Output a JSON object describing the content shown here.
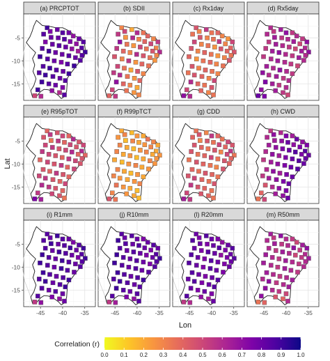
{
  "chart_data": {
    "type": "heatmap",
    "subtype": "faceted spatial point map (colored squares over a region outline)",
    "xlabel": "Lon",
    "ylabel": "Lat",
    "x_ticks": [
      -45,
      -40,
      -35
    ],
    "y_ticks": [
      -5,
      -10,
      -15
    ],
    "xlim": [
      -48.8,
      -32.6
    ],
    "ylim": [
      -18.6,
      0.2
    ],
    "grid": true,
    "colorbar": {
      "title": "Correlation (r)",
      "range": [
        0.0,
        1.0
      ],
      "ticks": [
        "0.0",
        "0.1",
        "0.2",
        "0.3",
        "0.4",
        "0.5",
        "0.6",
        "0.7",
        "0.8",
        "0.9",
        "1.0"
      ],
      "colors": [
        "#f0f921",
        "#fdc527",
        "#f89540",
        "#e66c5c",
        "#cc4778",
        "#aa2395",
        "#7e03a8",
        "#4c02a1",
        "#0d0887"
      ],
      "placement": "bottom"
    },
    "stations": [
      {
        "lon": -43.5,
        "lat": -2.8
      },
      {
        "lon": -42.8,
        "lat": -3.6
      },
      {
        "lon": -41.2,
        "lat": -3.2
      },
      {
        "lon": -40.0,
        "lat": -3.9
      },
      {
        "lon": -38.6,
        "lat": -3.9
      },
      {
        "lon": -37.6,
        "lat": -4.6
      },
      {
        "lon": -36.3,
        "lat": -5.2
      },
      {
        "lon": -35.3,
        "lat": -5.9
      },
      {
        "lon": -44.3,
        "lat": -4.2
      },
      {
        "lon": -42.6,
        "lat": -4.9
      },
      {
        "lon": -41.0,
        "lat": -5.0
      },
      {
        "lon": -39.6,
        "lat": -5.3
      },
      {
        "lon": -38.3,
        "lat": -5.8
      },
      {
        "lon": -36.9,
        "lat": -6.3
      },
      {
        "lon": -35.7,
        "lat": -7.2
      },
      {
        "lon": -34.9,
        "lat": -8.1
      },
      {
        "lon": -43.9,
        "lat": -5.9
      },
      {
        "lon": -42.3,
        "lat": -6.4
      },
      {
        "lon": -40.8,
        "lat": -6.7
      },
      {
        "lon": -39.3,
        "lat": -7.0
      },
      {
        "lon": -37.9,
        "lat": -7.4
      },
      {
        "lon": -36.5,
        "lat": -7.9
      },
      {
        "lon": -35.6,
        "lat": -8.8
      },
      {
        "lon": -44.6,
        "lat": -7.3
      },
      {
        "lon": -43.1,
        "lat": -7.9
      },
      {
        "lon": -41.6,
        "lat": -8.2
      },
      {
        "lon": -40.1,
        "lat": -8.6
      },
      {
        "lon": -38.6,
        "lat": -8.9
      },
      {
        "lon": -37.1,
        "lat": -9.3
      },
      {
        "lon": -36.0,
        "lat": -9.9
      },
      {
        "lon": -45.1,
        "lat": -9.1
      },
      {
        "lon": -43.4,
        "lat": -9.6
      },
      {
        "lon": -41.9,
        "lat": -10.0
      },
      {
        "lon": -40.3,
        "lat": -10.3
      },
      {
        "lon": -38.9,
        "lat": -10.7
      },
      {
        "lon": -37.4,
        "lat": -11.1
      },
      {
        "lon": -44.4,
        "lat": -11.2
      },
      {
        "lon": -42.9,
        "lat": -11.6
      },
      {
        "lon": -41.4,
        "lat": -12.0
      },
      {
        "lon": -39.9,
        "lat": -12.3
      },
      {
        "lon": -38.6,
        "lat": -12.8
      },
      {
        "lon": -45.3,
        "lat": -12.6
      },
      {
        "lon": -43.9,
        "lat": -13.1
      },
      {
        "lon": -42.2,
        "lat": -13.4
      },
      {
        "lon": -40.6,
        "lat": -13.8
      },
      {
        "lon": -39.4,
        "lat": -14.3
      },
      {
        "lon": -44.7,
        "lat": -14.6
      },
      {
        "lon": -43.1,
        "lat": -15.0
      },
      {
        "lon": -41.6,
        "lat": -15.3
      },
      {
        "lon": -40.0,
        "lat": -15.8
      },
      {
        "lon": -42.4,
        "lat": -16.5
      },
      {
        "lon": -40.7,
        "lat": -16.9
      },
      {
        "lon": -39.6,
        "lat": -17.4
      },
      {
        "lon": -45.6,
        "lat": -16.3
      },
      {
        "lon": -46.3,
        "lat": -17.6
      },
      {
        "lon": -44.9,
        "lat": -17.7
      }
    ],
    "panels": [
      {
        "label": "(a) PRCPTOT",
        "r": [
          0.9,
          0.75,
          0.8,
          0.85,
          0.78,
          0.7,
          0.8,
          0.85,
          0.85,
          0.8,
          0.8,
          0.85,
          0.75,
          0.7,
          0.85,
          0.9,
          0.75,
          0.8,
          0.85,
          0.8,
          0.7,
          0.65,
          0.85,
          0.85,
          0.9,
          0.8,
          0.8,
          0.85,
          0.8,
          0.85,
          0.9,
          0.85,
          0.8,
          0.75,
          0.85,
          0.9,
          0.85,
          0.9,
          0.85,
          0.8,
          0.9,
          0.85,
          0.9,
          0.85,
          0.8,
          0.85,
          0.9,
          0.85,
          0.8,
          0.75,
          0.7,
          0.6,
          0.85,
          0.9,
          0.5,
          0.6
        ]
      },
      {
        "label": "(b) SDII",
        "r": [
          0.3,
          0.5,
          0.2,
          0.6,
          0.35,
          0.4,
          0.3,
          0.55,
          0.55,
          0.25,
          0.6,
          0.3,
          0.4,
          0.5,
          0.3,
          0.6,
          0.7,
          0.35,
          0.25,
          0.5,
          0.35,
          0.45,
          0.3,
          0.55,
          0.4,
          0.3,
          0.6,
          0.45,
          0.35,
          0.25,
          0.45,
          0.3,
          0.55,
          0.25,
          0.4,
          0.35,
          0.5,
          0.35,
          0.2,
          0.45,
          0.3,
          0.55,
          0.6,
          0.35,
          0.25,
          0.4,
          0.7,
          0.4,
          0.3,
          0.2,
          0.35,
          0.25,
          0.3,
          0.5,
          0.4,
          0.55
        ]
      },
      {
        "label": "(c) Rx1day",
        "r": [
          0.45,
          0.3,
          0.55,
          0.35,
          0.4,
          0.3,
          0.25,
          0.5,
          0.35,
          0.45,
          0.3,
          0.35,
          0.55,
          0.3,
          0.4,
          0.45,
          0.5,
          0.3,
          0.35,
          0.25,
          0.45,
          0.4,
          0.35,
          0.45,
          0.3,
          0.4,
          0.35,
          0.25,
          0.3,
          0.45,
          0.4,
          0.25,
          0.35,
          0.4,
          0.3,
          0.35,
          0.45,
          0.3,
          0.4,
          0.35,
          0.3,
          0.35,
          0.45,
          0.4,
          0.3,
          0.5,
          0.6,
          0.4,
          0.35,
          0.45,
          0.4,
          0.3,
          0.35,
          0.5,
          0.7,
          0.6
        ]
      },
      {
        "label": "(d) Rx5day",
        "r": [
          0.6,
          0.55,
          0.65,
          0.7,
          0.55,
          0.6,
          0.55,
          0.7,
          0.6,
          0.65,
          0.55,
          0.6,
          0.65,
          0.5,
          0.6,
          0.7,
          0.55,
          0.65,
          0.6,
          0.55,
          0.5,
          0.65,
          0.6,
          0.55,
          0.65,
          0.7,
          0.6,
          0.55,
          0.65,
          0.6,
          0.55,
          0.6,
          0.65,
          0.6,
          0.55,
          0.5,
          0.65,
          0.6,
          0.7,
          0.6,
          0.55,
          0.7,
          0.6,
          0.65,
          0.55,
          0.6,
          0.75,
          0.65,
          0.55,
          0.6,
          0.65,
          0.55,
          0.5,
          0.7,
          0.8,
          0.75
        ]
      },
      {
        "label": "(e) R95pTOT",
        "r": [
          0.4,
          0.55,
          0.45,
          0.5,
          0.4,
          0.6,
          0.45,
          0.5,
          0.45,
          0.35,
          0.55,
          0.4,
          0.5,
          0.45,
          0.6,
          0.4,
          0.5,
          0.55,
          0.45,
          0.5,
          0.6,
          0.4,
          0.45,
          0.55,
          0.5,
          0.45,
          0.4,
          0.55,
          0.5,
          0.45,
          0.4,
          0.5,
          0.45,
          0.55,
          0.4,
          0.5,
          0.45,
          0.4,
          0.55,
          0.45,
          0.4,
          0.5,
          0.55,
          0.45,
          0.4,
          0.5,
          0.6,
          0.55,
          0.45,
          0.4,
          0.5,
          0.45,
          0.35,
          0.55,
          0.75,
          0.65
        ]
      },
      {
        "label": "(f) R99pTCT",
        "r": [
          0.2,
          0.3,
          0.15,
          0.25,
          0.2,
          0.35,
          0.3,
          0.2,
          0.25,
          0.15,
          0.3,
          0.2,
          0.25,
          0.3,
          0.2,
          0.25,
          0.3,
          0.2,
          0.15,
          0.25,
          0.3,
          0.2,
          0.25,
          0.3,
          0.2,
          0.25,
          0.15,
          0.2,
          0.3,
          0.25,
          0.2,
          0.15,
          0.25,
          0.3,
          0.2,
          0.25,
          0.3,
          0.2,
          0.15,
          0.25,
          0.2,
          0.3,
          0.25,
          0.2,
          0.25,
          0.3,
          0.35,
          0.25,
          0.2,
          0.15,
          0.25,
          0.2,
          0.15,
          0.3,
          0.45,
          0.35
        ]
      },
      {
        "label": "(g) CDD",
        "r": [
          0.35,
          0.45,
          0.3,
          0.55,
          0.4,
          0.35,
          0.5,
          0.45,
          0.4,
          0.3,
          0.45,
          0.35,
          0.5,
          0.4,
          0.55,
          0.35,
          0.45,
          0.4,
          0.35,
          0.45,
          0.3,
          0.5,
          0.4,
          0.45,
          0.35,
          0.4,
          0.5,
          0.35,
          0.45,
          0.4,
          0.35,
          0.45,
          0.4,
          0.35,
          0.3,
          0.45,
          0.4,
          0.35,
          0.45,
          0.4,
          0.35,
          0.45,
          0.5,
          0.4,
          0.35,
          0.45,
          0.55,
          0.45,
          0.4,
          0.35,
          0.45,
          0.4,
          0.35,
          0.5,
          0.65,
          0.55
        ]
      },
      {
        "label": "(h) CWD",
        "r": [
          0.55,
          0.7,
          0.6,
          0.75,
          0.65,
          0.8,
          0.7,
          0.75,
          0.6,
          0.65,
          0.7,
          0.8,
          0.7,
          0.75,
          0.85,
          0.8,
          0.65,
          0.7,
          0.75,
          0.8,
          0.85,
          0.75,
          0.8,
          0.6,
          0.7,
          0.65,
          0.75,
          0.8,
          0.85,
          0.8,
          0.55,
          0.65,
          0.7,
          0.75,
          0.8,
          0.85,
          0.6,
          0.7,
          0.65,
          0.75,
          0.8,
          0.55,
          0.65,
          0.7,
          0.75,
          0.8,
          0.45,
          0.6,
          0.7,
          0.75,
          0.65,
          0.7,
          0.8,
          0.4,
          0.35,
          0.5
        ]
      },
      {
        "label": "(i) R1mm",
        "r": [
          0.85,
          0.8,
          0.9,
          0.85,
          0.8,
          0.75,
          0.85,
          0.9,
          0.85,
          0.9,
          0.8,
          0.85,
          0.9,
          0.8,
          0.85,
          0.9,
          0.85,
          0.8,
          0.9,
          0.85,
          0.8,
          0.75,
          0.85,
          0.9,
          0.85,
          0.8,
          0.9,
          0.85,
          0.8,
          0.85,
          0.9,
          0.85,
          0.8,
          0.9,
          0.85,
          0.8,
          0.9,
          0.85,
          0.8,
          0.85,
          0.9,
          0.85,
          0.9,
          0.8,
          0.85,
          0.9,
          0.85,
          0.8,
          0.85,
          0.8,
          0.75,
          0.7,
          0.8,
          0.85,
          0.55,
          0.7
        ]
      },
      {
        "label": "(j) R10mm",
        "r": [
          0.85,
          0.8,
          0.85,
          0.8,
          0.75,
          0.8,
          0.85,
          0.8,
          0.9,
          0.85,
          0.8,
          0.85,
          0.8,
          0.75,
          0.85,
          0.9,
          0.85,
          0.8,
          0.85,
          0.8,
          0.75,
          0.8,
          0.85,
          0.9,
          0.85,
          0.8,
          0.85,
          0.8,
          0.75,
          0.85,
          0.9,
          0.85,
          0.8,
          0.85,
          0.8,
          0.85,
          0.9,
          0.85,
          0.8,
          0.85,
          0.9,
          0.85,
          0.9,
          0.85,
          0.8,
          0.85,
          0.9,
          0.85,
          0.8,
          0.85,
          0.75,
          0.7,
          0.85,
          0.85,
          0.55,
          0.65
        ]
      },
      {
        "label": "(l) R20mm",
        "r": [
          0.8,
          0.75,
          0.85,
          0.8,
          0.75,
          0.7,
          0.8,
          0.85,
          0.85,
          0.8,
          0.75,
          0.8,
          0.85,
          0.75,
          0.8,
          0.85,
          0.8,
          0.75,
          0.85,
          0.8,
          0.7,
          0.75,
          0.8,
          0.85,
          0.8,
          0.75,
          0.85,
          0.8,
          0.75,
          0.8,
          0.85,
          0.8,
          0.75,
          0.85,
          0.8,
          0.75,
          0.85,
          0.8,
          0.75,
          0.8,
          0.85,
          0.8,
          0.85,
          0.75,
          0.8,
          0.85,
          0.8,
          0.75,
          0.8,
          0.75,
          0.7,
          0.65,
          0.8,
          0.85,
          0.55,
          0.6
        ]
      },
      {
        "label": "(m) R50mm",
        "r": [
          0.65,
          0.55,
          0.7,
          0.6,
          0.55,
          0.5,
          0.65,
          0.7,
          0.6,
          0.65,
          0.55,
          0.6,
          0.7,
          0.55,
          0.6,
          0.65,
          0.6,
          0.55,
          0.65,
          0.6,
          0.5,
          0.55,
          0.6,
          0.65,
          0.6,
          0.55,
          0.65,
          0.6,
          0.55,
          0.6,
          0.65,
          0.6,
          0.55,
          0.65,
          0.6,
          0.55,
          0.65,
          0.6,
          0.55,
          0.6,
          0.65,
          0.6,
          0.7,
          0.55,
          0.6,
          0.65,
          0.7,
          0.6,
          0.55,
          0.5,
          0.45,
          0.4,
          0.6,
          0.7,
          0.35,
          0.4
        ]
      }
    ],
    "region_outline": [
      [
        -45.9,
        -1.2
      ],
      [
        -44.6,
        -2.3
      ],
      [
        -43.0,
        -2.5
      ],
      [
        -41.5,
        -2.8
      ],
      [
        -40.0,
        -2.8
      ],
      [
        -38.5,
        -3.5
      ],
      [
        -37.2,
        -4.6
      ],
      [
        -35.8,
        -5.1
      ],
      [
        -35.1,
        -5.9
      ],
      [
        -34.9,
        -7.5
      ],
      [
        -35.1,
        -9.0
      ],
      [
        -36.4,
        -10.5
      ],
      [
        -37.3,
        -11.6
      ],
      [
        -38.3,
        -12.9
      ],
      [
        -38.9,
        -13.7
      ],
      [
        -39.0,
        -15.2
      ],
      [
        -39.1,
        -16.6
      ],
      [
        -39.6,
        -17.8
      ],
      [
        -40.3,
        -18.2
      ],
      [
        -41.0,
        -17.5
      ],
      [
        -42.0,
        -16.8
      ],
      [
        -43.2,
        -16.3
      ],
      [
        -44.2,
        -16.2
      ],
      [
        -45.0,
        -16.7
      ],
      [
        -45.8,
        -17.6
      ],
      [
        -46.8,
        -17.9
      ],
      [
        -47.2,
        -16.5
      ],
      [
        -46.5,
        -15.4
      ],
      [
        -46.0,
        -13.9
      ],
      [
        -46.7,
        -12.3
      ],
      [
        -46.3,
        -10.9
      ],
      [
        -46.8,
        -9.5
      ],
      [
        -46.1,
        -8.2
      ],
      [
        -47.3,
        -7.1
      ],
      [
        -48.2,
        -6.0
      ],
      [
        -47.4,
        -4.8
      ],
      [
        -46.9,
        -3.6
      ],
      [
        -46.5,
        -2.4
      ],
      [
        -45.9,
        -1.2
      ]
    ],
    "context_outline": [
      [
        -48.2,
        -6.0
      ],
      [
        -48.8,
        -8.0
      ],
      [
        -49.0,
        -10.5
      ],
      [
        -48.6,
        -13.0
      ],
      [
        -47.8,
        -15.0
      ],
      [
        -47.2,
        -16.5
      ]
    ]
  }
}
